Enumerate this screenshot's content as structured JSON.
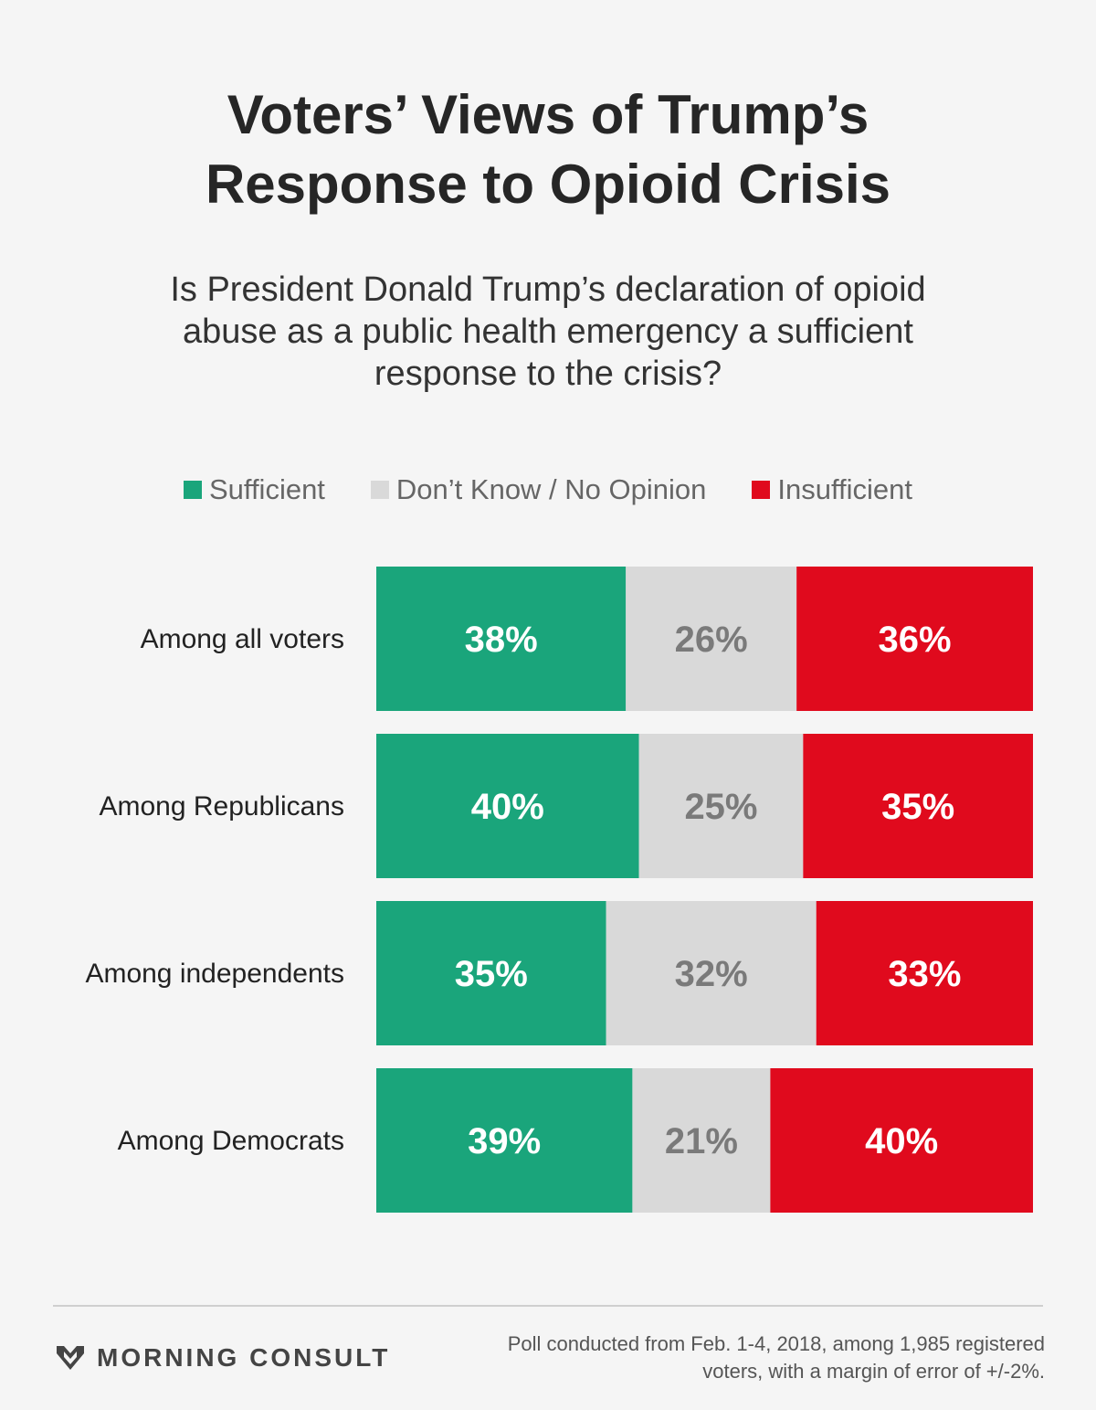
{
  "title_line1": "Voters’ Views of Trump’s",
  "title_line2": "Response to Opioid Crisis",
  "subtitle": "Is President Donald Trump’s declaration of opioid abuse as a public health emergency a sufficient response to the crisis?",
  "legend": [
    {
      "label": "Sufficient",
      "color": "#1aa57b"
    },
    {
      "label": "Don’t Know / No Opinion",
      "color": "#d9d9d9"
    },
    {
      "label": "Insufficient",
      "color": "#e00a1d"
    }
  ],
  "chart_data": {
    "type": "bar",
    "orientation": "horizontal",
    "stacked": "100%",
    "categories": [
      "Among all voters",
      "Among Republicans",
      "Among independents",
      "Among Democrats"
    ],
    "series": [
      {
        "name": "Sufficient",
        "values": [
          38,
          40,
          35,
          39
        ],
        "color": "#1aa57b",
        "label_color": "#ffffff"
      },
      {
        "name": "Don’t Know / No Opinion",
        "values": [
          26,
          25,
          32,
          21
        ],
        "color": "#d9d9d9",
        "label_color": "#7a7a7a"
      },
      {
        "name": "Insufficient",
        "values": [
          36,
          35,
          33,
          40
        ],
        "color": "#e00a1d",
        "label_color": "#ffffff"
      }
    ],
    "value_suffix": "%",
    "legend_position": "top",
    "grid": false
  },
  "footer": {
    "brand": "MORNING CONSULT",
    "source": "Poll conducted from Feb. 1-4, 2018, among 1,985 registered voters, with a margin of error of +/-2%."
  }
}
